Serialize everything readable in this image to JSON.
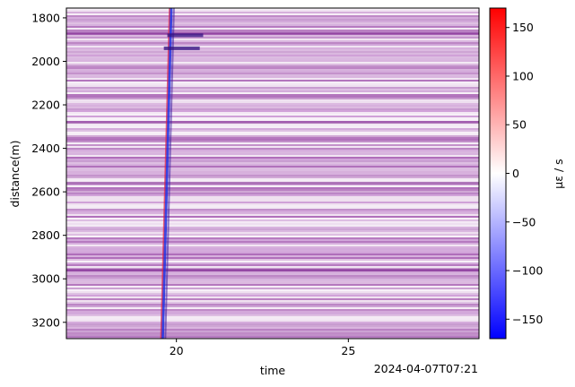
{
  "chart_data": {
    "type": "heatmap",
    "title": "",
    "xlabel": "time",
    "ylabel": "distance(m)",
    "x_offset_label": "2024-04-07T07:21",
    "xlim": [
      16.8,
      28.8
    ],
    "ylim": [
      3275,
      1755
    ],
    "x_ticks": [
      20,
      25
    ],
    "y_ticks": [
      1800,
      2000,
      2200,
      2400,
      2600,
      2800,
      3000,
      3200
    ],
    "y_inverted": true,
    "grid": false,
    "colormap": "bwr",
    "colormap_colors": [
      "#0000ff",
      "#ffffff",
      "#ff0000"
    ],
    "colorbar": {
      "label": "με / s",
      "range": [
        -170,
        170
      ],
      "ticks": [
        150,
        100,
        50,
        0,
        -50,
        -100,
        -150
      ],
      "placement": "right"
    },
    "features": [
      {
        "kind": "event-track",
        "start": {
          "x": 19.85,
          "y": 1755
        },
        "end": {
          "x": 19.6,
          "y": 3275
        }
      },
      {
        "kind": "strong-response",
        "x": 20.1,
        "y": 1880
      },
      {
        "kind": "strong-response",
        "x": 20.0,
        "y": 1940
      },
      {
        "kind": "horizontal-band",
        "y": 1870
      },
      {
        "kind": "horizontal-band",
        "y": 2280
      },
      {
        "kind": "horizontal-band",
        "y": 2560
      },
      {
        "kind": "horizontal-band",
        "y": 2960
      }
    ]
  }
}
